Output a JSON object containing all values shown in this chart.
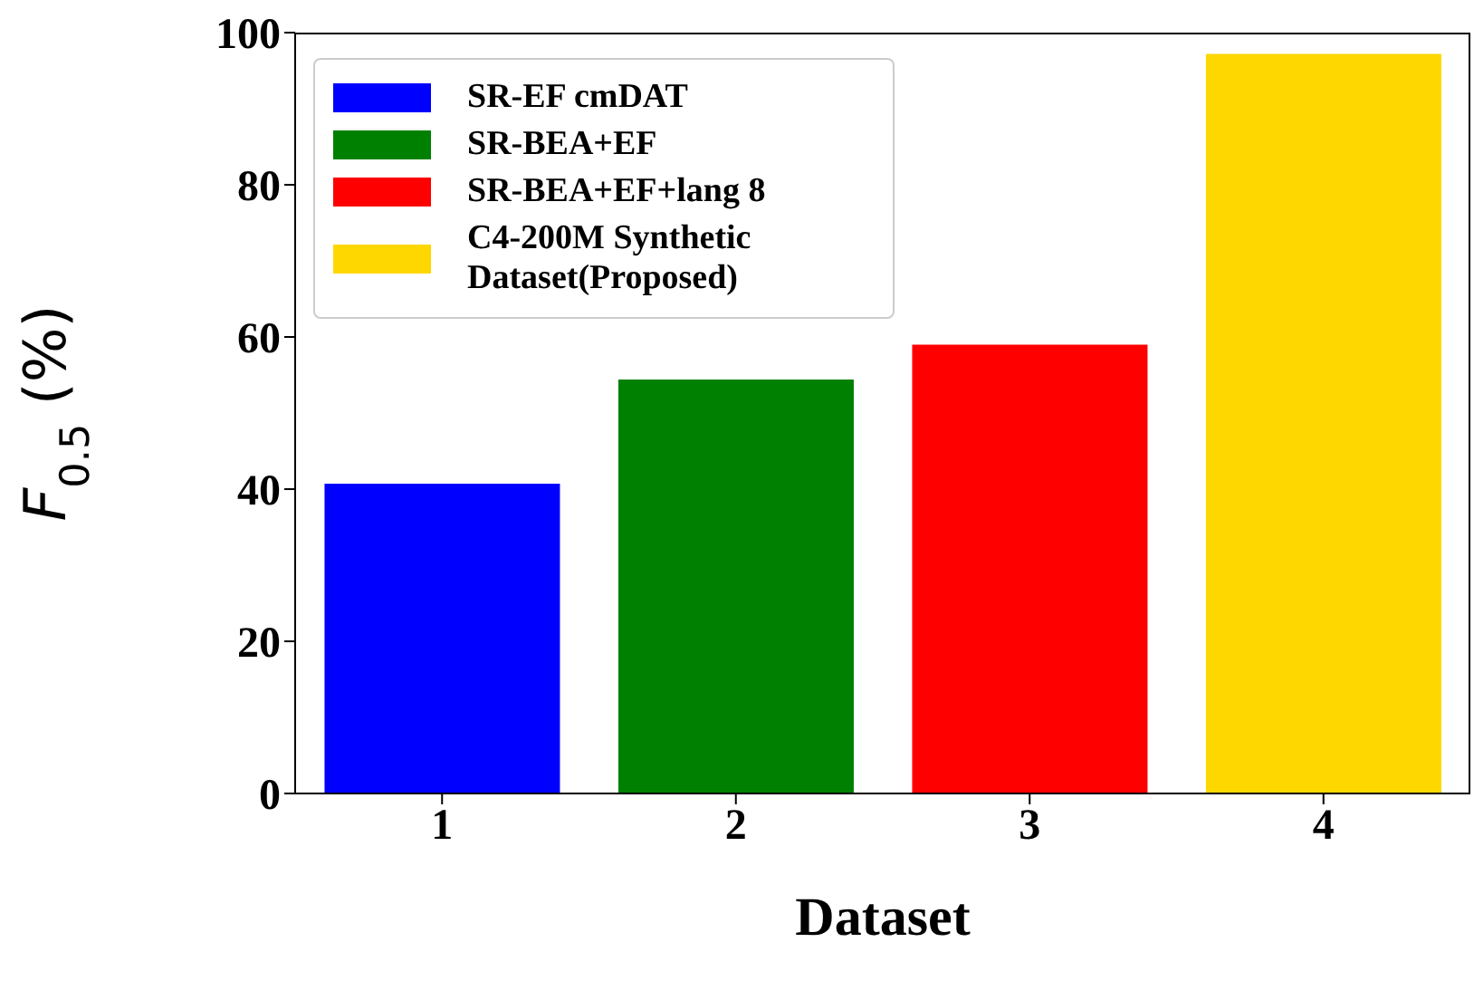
{
  "chart_data": {
    "type": "bar",
    "xlabel": "Dataset",
    "ylabel": "F$_{0.5}$ (%)",
    "categories": [
      "1",
      "2",
      "3",
      "4"
    ],
    "series": [
      {
        "name": "SR-EF cmDAT",
        "color": "#0000ff",
        "values": [
          40.7,
          null,
          null,
          null
        ]
      },
      {
        "name": "SR-BEA+EF",
        "color": "#008000",
        "values": [
          null,
          54.4,
          null,
          null
        ]
      },
      {
        "name": "SR-BEA+EF+lang 8",
        "color": "#ff0000",
        "values": [
          null,
          null,
          59.0,
          null
        ]
      },
      {
        "name": "C4-200M Synthetic Dataset(Proposed)",
        "color": "#ffd700",
        "values": [
          null,
          null,
          null,
          97.2
        ]
      }
    ],
    "ylim": [
      0,
      100
    ],
    "yticks": [
      0,
      20,
      40,
      60,
      80,
      100
    ],
    "grid": false,
    "legend": "top left"
  }
}
